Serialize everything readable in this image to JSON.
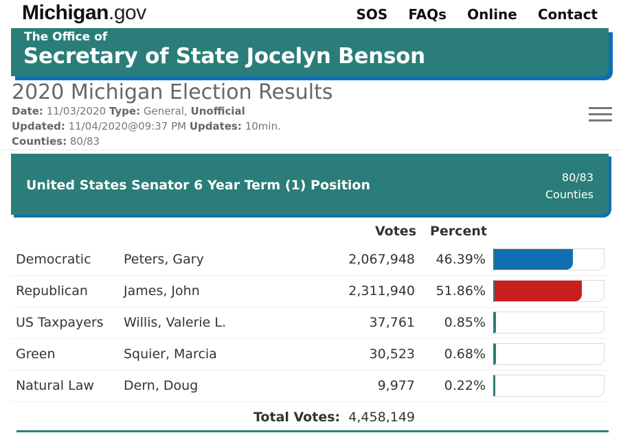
{
  "header": {
    "logo_brand": "Michigan",
    "logo_tld": ".gov",
    "nav": [
      "SOS",
      "FAQs",
      "Online",
      "Contact"
    ]
  },
  "banner": {
    "office": "The Office of",
    "name": "Secretary of State Jocelyn Benson"
  },
  "election": {
    "title": "2020 Michigan Election Results",
    "date_label": "Date:",
    "date": "11/03/2020",
    "type_label": "Type:",
    "type": "General,",
    "status": "Unofficial",
    "updated_label": "Updated:",
    "updated": "11/04/2020@09:37 PM",
    "updates_label": "Updates:",
    "updates": "10min.",
    "counties_label": "Counties:",
    "counties": "80/83"
  },
  "race": {
    "title": "United States Senator 6 Year Term (1) Position",
    "counties_count": "80/83",
    "counties_word": "Counties",
    "col_votes": "Votes",
    "col_percent": "Percent",
    "rows": [
      {
        "party": "Democratic",
        "candidate": "Peters, Gary",
        "votes": "2,067,948",
        "percent": "46.39%",
        "share": 0.4639,
        "color": "#0f6fb0"
      },
      {
        "party": "Republican",
        "candidate": "James, John",
        "votes": "2,311,940",
        "percent": "51.86%",
        "share": 0.5186,
        "color": "#c81e1e"
      },
      {
        "party": "US Taxpayers",
        "candidate": "Willis, Valerie L.",
        "votes": "37,761",
        "percent": "0.85%",
        "share": 0.0085,
        "color": "#2a7d78"
      },
      {
        "party": "Green",
        "candidate": "Squier, Marcia",
        "votes": "30,523",
        "percent": "0.68%",
        "share": 0.0068,
        "color": "#2a7d78"
      },
      {
        "party": "Natural Law",
        "candidate": "Dern, Doug",
        "votes": "9,977",
        "percent": "0.22%",
        "share": 0.0022,
        "color": "#2a7d78"
      }
    ],
    "total_label": "Total Votes:",
    "total_value": "4,458,149"
  },
  "icons": {
    "menu": "hamburger-menu-icon"
  }
}
